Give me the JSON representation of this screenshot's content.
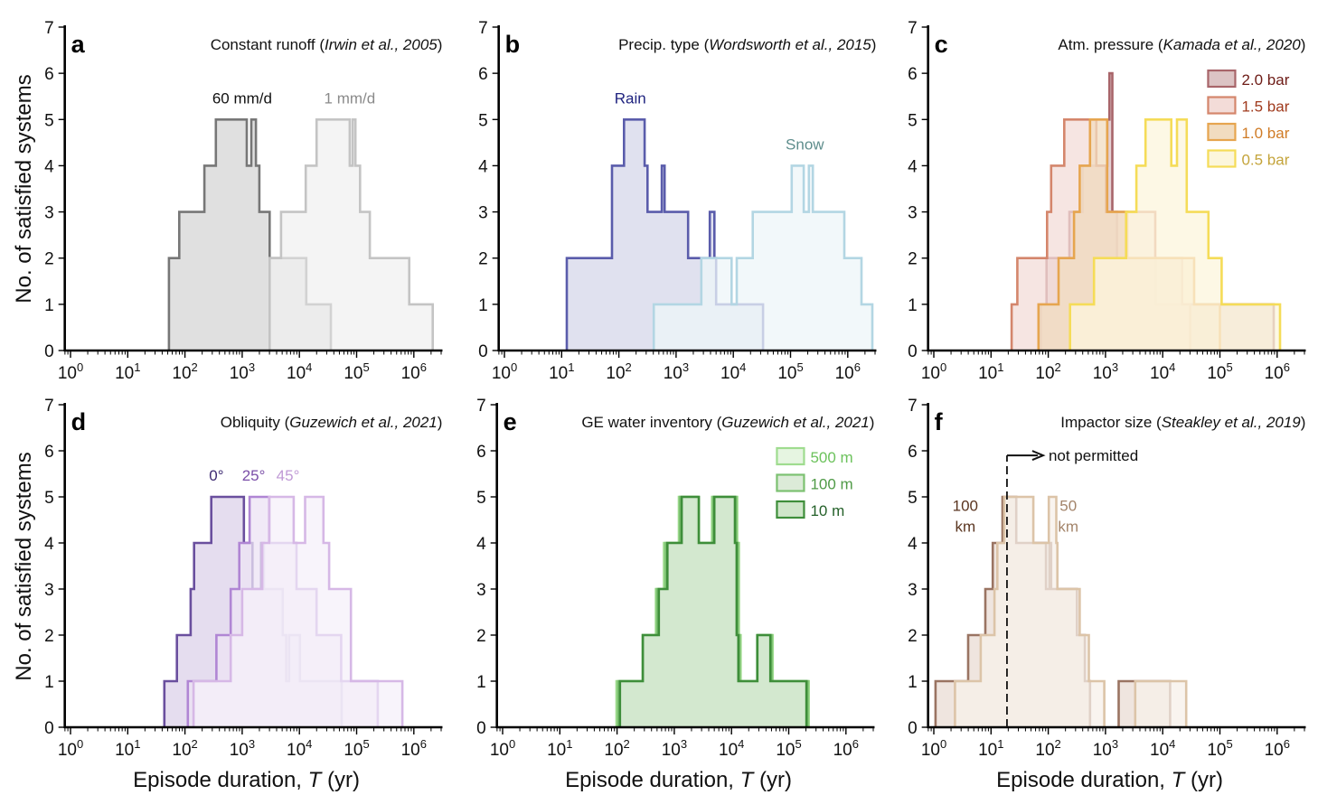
{
  "figure": {
    "ylabel": "No. of satisfied systems",
    "xlabel_prefix": "Episode duration, ",
    "xlabel_var": "T",
    "xlabel_suffix": " (yr)"
  },
  "chart_data": [
    {
      "type": "bar",
      "subtype": "step-histogram",
      "panel": "a",
      "title": "Constant runoff (",
      "title_cite": "Irwin et al., 2005",
      "title_end": ")",
      "xlabel": "",
      "ylabel": "No. of satisfied systems",
      "xscale": "log",
      "xlim_log10": [
        -0.1,
        6.5
      ],
      "ylim": [
        0,
        7
      ],
      "xticks": [
        "10^0",
        "10^1",
        "10^2",
        "10^3",
        "10^4",
        "10^5",
        "10^6"
      ],
      "yticks": [
        0,
        1,
        2,
        3,
        4,
        5,
        6,
        7
      ],
      "series": [
        {
          "name": "60 mm/d",
          "label_pos_log10": 3.0,
          "label_y": 5.35,
          "color": "#777777",
          "fill": "#d6d6d6",
          "text_color": "#111111",
          "edges_log10": [
            1.72,
            1.9,
            2.34,
            2.54,
            3.08,
            3.16,
            3.24,
            3.3,
            3.48,
            4.12,
            4.55
          ],
          "counts": [
            2,
            3,
            4,
            5,
            4,
            5,
            4,
            3,
            2,
            1
          ]
        },
        {
          "name": "1 mm/d",
          "label_pos_log10": 4.88,
          "label_y": 5.35,
          "color": "#c4c4c4",
          "fill": "#f0f0f0",
          "text_color": "#8a8a8a",
          "edges_log10": [
            3.48,
            3.68,
            4.11,
            4.3,
            4.88,
            4.93,
            4.98,
            5.06,
            5.23,
            5.92,
            6.33
          ],
          "counts": [
            2,
            3,
            4,
            5,
            4,
            5,
            4,
            3,
            2,
            1
          ]
        }
      ]
    },
    {
      "type": "bar",
      "subtype": "step-histogram",
      "panel": "b",
      "title": "Precip. type (",
      "title_cite": "Wordsworth et al., 2015",
      "title_end": ")",
      "xlabel": "",
      "ylabel": "",
      "xscale": "log",
      "xlim_log10": [
        -0.1,
        6.5
      ],
      "ylim": [
        0,
        7
      ],
      "xticks": [
        "10^0",
        "10^1",
        "10^2",
        "10^3",
        "10^4",
        "10^5",
        "10^6"
      ],
      "yticks": [
        0,
        1,
        2,
        3,
        4,
        5,
        6,
        7
      ],
      "series": [
        {
          "name": "Rain",
          "label_pos_log10": 2.2,
          "label_y": 5.35,
          "color": "#5a5cab",
          "fill": "#d6d7ea",
          "text_color": "#1f237f",
          "edges_log10": [
            1.09,
            1.88,
            2.09,
            2.45,
            2.5,
            2.75,
            2.8,
            3.21,
            3.59,
            3.67,
            3.7,
            4.52
          ],
          "counts": [
            2,
            4,
            5,
            4,
            3,
            4,
            3,
            2,
            3,
            2,
            1
          ]
        },
        {
          "name": "Snow",
          "label_pos_log10": 5.25,
          "label_y": 4.35,
          "color": "#b3d6e3",
          "fill": "#eef5f8",
          "text_color": "#5e8d8c",
          "edges_log10": [
            2.61,
            3.44,
            3.97,
            4.06,
            4.34,
            5.02,
            5.23,
            5.32,
            5.39,
            5.94,
            6.24,
            6.43
          ],
          "counts": [
            1,
            2,
            1,
            2,
            3,
            4,
            3,
            4,
            3,
            2,
            1
          ]
        }
      ]
    },
    {
      "type": "bar",
      "subtype": "step-histogram",
      "panel": "c",
      "title": "Atm. pressure (",
      "title_cite": "Kamada et al., 2020",
      "title_end": ")",
      "xlabel": "",
      "ylabel": "",
      "xscale": "log",
      "xlim_log10": [
        -0.1,
        6.5
      ],
      "ylim": [
        0,
        7
      ],
      "xticks": [
        "10^0",
        "10^1",
        "10^2",
        "10^3",
        "10^4",
        "10^5",
        "10^6"
      ],
      "yticks": [
        0,
        1,
        2,
        3,
        4,
        5,
        6,
        7
      ],
      "legend": "top-right",
      "series": [
        {
          "name": "2.0 bar",
          "color": "#a8656a",
          "fill": "#dcc3c4",
          "text_color": "#6e1c17",
          "edges_log10": [
            1.87,
            1.97,
            2.37,
            2.6,
            3.03,
            3.07,
            3.12,
            3.2,
            3.48,
            3.88,
            4.27,
            5.1,
            5.94
          ],
          "counts": [
            1,
            2,
            3,
            4,
            5,
            6,
            3,
            2,
            2,
            1,
            1,
            1
          ]
        },
        {
          "name": "1.5 bar",
          "color": "#d4866c",
          "fill": "#f3dcd8",
          "text_color": "#a03b1e",
          "edges_log10": [
            1.36,
            1.46,
            1.98,
            2.05,
            2.28,
            2.84,
            2.92,
            3.01,
            3.87,
            4.34,
            4.48
          ],
          "counts": [
            1,
            2,
            3,
            4,
            5,
            4,
            4,
            3,
            2,
            1
          ]
        },
        {
          "name": "1.0 bar",
          "color": "#e6a54f",
          "fill": "#f1dcc0",
          "text_color": "#d07c27",
          "edges_log10": [
            1.83,
            2.18,
            2.45,
            2.55,
            2.73,
            3.03,
            3.19,
            3.38,
            3.72,
            4.55,
            4.75,
            5.0
          ],
          "counts": [
            1,
            2,
            3,
            4,
            5,
            3,
            3,
            2,
            2,
            1,
            1
          ]
        },
        {
          "name": "0.5 bar",
          "color": "#f5dc58",
          "fill": "#fcf6dc",
          "text_color": "#c4a43b",
          "edges_log10": [
            2.38,
            2.8,
            3.36,
            3.54,
            3.7,
            4.15,
            4.25,
            4.42,
            4.8,
            5.03,
            6.05
          ],
          "counts": [
            1,
            2,
            3,
            4,
            5,
            4,
            5,
            3,
            2,
            1
          ]
        }
      ]
    },
    {
      "type": "bar",
      "subtype": "step-histogram",
      "panel": "d",
      "title": "Obliquity (",
      "title_cite": "Guzewich et al., 2021",
      "title_end": ")",
      "xlabel": "Episode duration, T (yr)",
      "ylabel": "No. of satisfied systems",
      "xscale": "log",
      "xlim_log10": [
        -0.1,
        6.5
      ],
      "ylim": [
        0,
        7
      ],
      "xticks": [
        "10^0",
        "10^1",
        "10^2",
        "10^3",
        "10^4",
        "10^5",
        "10^6"
      ],
      "yticks": [
        0,
        1,
        2,
        3,
        4,
        5,
        6,
        7
      ],
      "series": [
        {
          "name": "0°",
          "label_pos_log10": 2.55,
          "label_y": 5.35,
          "color": "#6a4f9e",
          "fill": "#dcd2ea",
          "text_color": "#3d2a72",
          "edges_log10": [
            1.64,
            1.86,
            2.1,
            2.16,
            2.46,
            3.03,
            3.18,
            3.33,
            3.38,
            3.71,
            3.77,
            3.82,
            4.01,
            4.74
          ],
          "counts": [
            1,
            2,
            3,
            4,
            5,
            4,
            3,
            4,
            3,
            2,
            1,
            2,
            1
          ]
        },
        {
          "name": "25°",
          "label_pos_log10": 3.2,
          "label_y": 5.35,
          "color": "#b086d4",
          "fill": "#ece3f4",
          "text_color": "#7b4fa8",
          "edges_log10": [
            2.05,
            2.55,
            2.8,
            2.95,
            3.13,
            3.48,
            3.75,
            3.95,
            4.3,
            4.55,
            4.73,
            5.37
          ],
          "counts": [
            1,
            2,
            3,
            4,
            5,
            4,
            4,
            3,
            2,
            2,
            1
          ]
        },
        {
          "name": "45°",
          "label_pos_log10": 3.8,
          "label_y": 5.35,
          "color": "#d6b8e6",
          "fill": "#f6f0f9",
          "text_color": "#c09ad6",
          "edges_log10": [
            2.15,
            2.8,
            3.0,
            3.35,
            3.47,
            3.9,
            4.1,
            4.42,
            4.52,
            4.9,
            5.8
          ],
          "counts": [
            1,
            2,
            3,
            4,
            5,
            4,
            5,
            4,
            3,
            1
          ]
        }
      ]
    },
    {
      "type": "bar",
      "subtype": "step-histogram",
      "panel": "e",
      "title": "GE water inventory (",
      "title_cite": "Guzewich et al., 2021",
      "title_end": ")",
      "xlabel": "Episode duration, T (yr)",
      "ylabel": "",
      "xscale": "log",
      "xlim_log10": [
        -0.1,
        6.5
      ],
      "ylim": [
        0,
        7
      ],
      "xticks": [
        "10^0",
        "10^1",
        "10^2",
        "10^3",
        "10^4",
        "10^5",
        "10^6"
      ],
      "yticks": [
        0,
        1,
        2,
        3,
        4,
        5,
        6,
        7
      ],
      "legend": "top-right",
      "series": [
        {
          "name": "500 m",
          "color": "#9fdc8f",
          "fill": "#e6f5e1",
          "text_color": "#6cc25c",
          "edges_log10": [
            1.99,
            2.45,
            2.68,
            2.82,
            3.08,
            3.4,
            3.66,
            4.1,
            4.13,
            4.16,
            4.47,
            4.72,
            5.35
          ],
          "counts": [
            1,
            2,
            3,
            4,
            5,
            4,
            5,
            4,
            2,
            1,
            2,
            1
          ]
        },
        {
          "name": "100 m",
          "color": "#7cc171",
          "fill": "#dcebd8",
          "text_color": "#4f9a46",
          "edges_log10": [
            2.02,
            2.45,
            2.7,
            2.85,
            3.1,
            3.42,
            3.68,
            4.08,
            4.11,
            4.14,
            4.46,
            4.7,
            5.33
          ],
          "counts": [
            1,
            2,
            3,
            4,
            5,
            4,
            5,
            4,
            2,
            1,
            2,
            1
          ]
        },
        {
          "name": "10 m",
          "color": "#3e8e3a",
          "fill": "#cfe6c9",
          "text_color": "#25612a",
          "edges_log10": [
            2.05,
            2.45,
            2.73,
            2.88,
            3.13,
            3.43,
            3.7,
            4.06,
            4.09,
            4.12,
            4.45,
            4.68,
            5.31
          ],
          "counts": [
            1,
            2,
            3,
            4,
            5,
            4,
            5,
            4,
            2,
            1,
            2,
            1
          ]
        }
      ]
    },
    {
      "type": "bar",
      "subtype": "step-histogram",
      "panel": "f",
      "title": "Impactor size (",
      "title_cite": "Steakley et al., 2019",
      "title_end": ")",
      "xlabel": "Episode duration, T (yr)",
      "ylabel": "",
      "xscale": "log",
      "xlim_log10": [
        -0.1,
        6.5
      ],
      "ylim": [
        0,
        7
      ],
      "xticks": [
        "10^0",
        "10^1",
        "10^2",
        "10^3",
        "10^4",
        "10^5",
        "10^6"
      ],
      "yticks": [
        0,
        1,
        2,
        3,
        4,
        5,
        6,
        7
      ],
      "annotation": {
        "text": "not permitted",
        "threshold_yr": 19,
        "direction": "right"
      },
      "series": [
        {
          "name": "100 km",
          "label_lines": [
            "100",
            "km"
          ],
          "label_pos_log10": 0.55,
          "label_y": 4.7,
          "color": "#9a7462",
          "fill": "#e9dcd4",
          "text_color": "#5a3520",
          "edges_log10": [
            0.03,
            0.6,
            0.9,
            1.03,
            1.2,
            1.44,
            1.96,
            2.02,
            2.05,
            2.5,
            2.64,
            2.73
          ],
          "counts": [
            1,
            2,
            3,
            4,
            5,
            4,
            3,
            4,
            3,
            2,
            1
          ],
          "extra_bins": [
            {
              "edges_log10": [
                3.23,
                4.13
              ],
              "count": 1
            }
          ]
        },
        {
          "name": "50 km",
          "label_lines": [
            "50",
            "km"
          ],
          "label_pos_log10": 2.35,
          "label_y": 4.7,
          "color": "#dcc4a8",
          "fill": "#f7f0ea",
          "text_color": "#a3846a",
          "edges_log10": [
            0.37,
            0.82,
            1.06,
            1.11,
            1.23,
            1.74,
            2.01,
            2.14,
            2.16,
            2.55,
            2.71,
            2.98
          ],
          "counts": [
            1,
            2,
            3,
            4,
            5,
            4,
            5,
            4,
            3,
            2,
            1
          ],
          "extra_bins": [
            {
              "edges_log10": [
                3.52,
                4.41
              ],
              "count": 1
            }
          ]
        }
      ]
    }
  ]
}
